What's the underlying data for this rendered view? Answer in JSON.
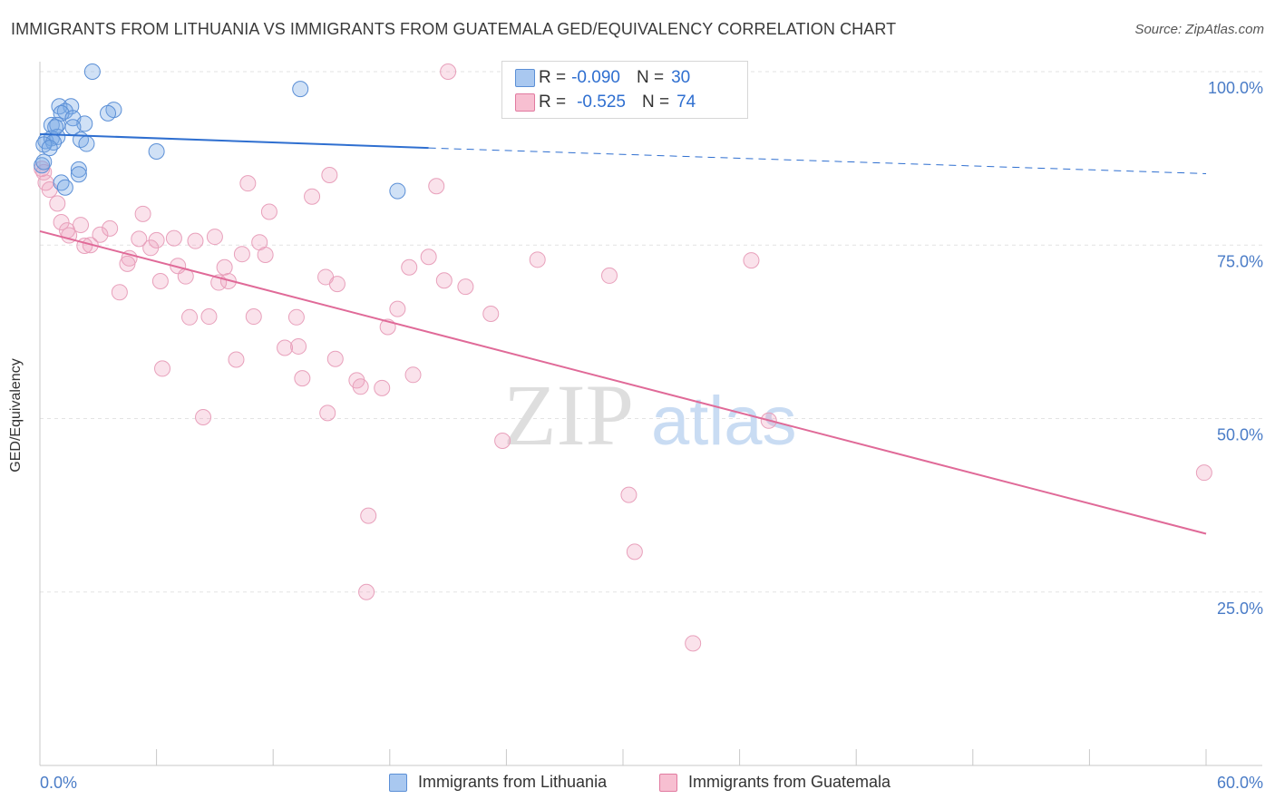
{
  "title": "IMMIGRANTS FROM LITHUANIA VS IMMIGRANTS FROM GUATEMALA GED/EQUIVALENCY CORRELATION CHART",
  "source": "Source: ZipAtlas.com",
  "ylabel": "GED/Equivalency",
  "watermark": {
    "part1": "ZIP",
    "part2": "atlas"
  },
  "legend_stats": [
    {
      "r_label": "R =",
      "r_value": "-0.090",
      "n_label": "N =",
      "n_value": "30",
      "color": "#a9c8f0",
      "border": "#5b8fd6"
    },
    {
      "r_label": "R =",
      "r_value": "-0.525",
      "n_label": "N =",
      "n_value": "74",
      "color": "#f7bfd1",
      "border": "#e17aa0"
    }
  ],
  "legend_bottom": [
    {
      "label": "Immigrants from Lithuania",
      "color": "#a9c8f0",
      "border": "#5b8fd6"
    },
    {
      "label": "Immigrants from Guatemala",
      "color": "#f7bfd1",
      "border": "#e17aa0"
    }
  ],
  "colors": {
    "lithuania_fill": "rgba(120,170,230,0.35)",
    "lithuania_stroke": "#5b8fd6",
    "lithuania_line": "#2f6fd0",
    "guatemala_fill": "rgba(240,160,190,0.30)",
    "guatemala_stroke": "#e8a0bb",
    "guatemala_line": "#e06a98",
    "grid": "#e3e3e3",
    "axis_text": "#4a7cc7"
  },
  "chart_data": {
    "type": "scatter",
    "xlabel": "",
    "ylabel": "GED/Equivalency",
    "xlim": [
      0,
      60
    ],
    "ylim": [
      0,
      102
    ],
    "x_tick_labels": [
      {
        "value": 0,
        "label": "0.0%"
      },
      {
        "value": 60,
        "label": "60.0%"
      }
    ],
    "y_tick_labels": [
      {
        "value": 100,
        "label": "100.0%"
      },
      {
        "value": 75,
        "label": "75.0%"
      },
      {
        "value": 50,
        "label": "50.0%"
      },
      {
        "value": 25,
        "label": "25.0%"
      }
    ],
    "x_minor_ticks": [
      0,
      6,
      12,
      18,
      24,
      30,
      36,
      42,
      48,
      54,
      60
    ],
    "y_gridlines": [
      100,
      75,
      50,
      25
    ],
    "legend_position": "top-center",
    "series": [
      {
        "name": "Immigrants from Lithuania",
        "points": [
          [
            2.7,
            100.0
          ],
          [
            13.4,
            97.5
          ],
          [
            1.0,
            95.0
          ],
          [
            1.6,
            95.0
          ],
          [
            3.8,
            94.5
          ],
          [
            1.3,
            94.3
          ],
          [
            3.5,
            94.0
          ],
          [
            1.1,
            94.0
          ],
          [
            1.7,
            93.3
          ],
          [
            0.6,
            92.3
          ],
          [
            0.9,
            92.3
          ],
          [
            2.3,
            92.5
          ],
          [
            1.7,
            92.0
          ],
          [
            0.3,
            90.0
          ],
          [
            0.6,
            90.4
          ],
          [
            0.9,
            90.6
          ],
          [
            2.1,
            90.2
          ],
          [
            2.4,
            89.6
          ],
          [
            0.7,
            89.8
          ],
          [
            0.2,
            89.5
          ],
          [
            6.0,
            88.5
          ],
          [
            0.1,
            86.5
          ],
          [
            2.0,
            85.9
          ],
          [
            2.0,
            85.2
          ],
          [
            1.1,
            84.0
          ],
          [
            1.3,
            83.3
          ],
          [
            18.4,
            82.8
          ],
          [
            0.2,
            87.0
          ],
          [
            0.5,
            89.0
          ],
          [
            0.8,
            92.0
          ]
        ],
        "trend": {
          "x": [
            0.0,
            20.0
          ],
          "y": [
            91.0,
            89.0
          ],
          "dashed_extension": {
            "x": [
              20.0,
              60.0
            ],
            "y": [
              89.0,
              85.3
            ]
          }
        }
      },
      {
        "name": "Immigrants from Guatemala",
        "points": [
          [
            21.0,
            100.0
          ],
          [
            14.9,
            85.1
          ],
          [
            10.7,
            83.9
          ],
          [
            14.0,
            82.0
          ],
          [
            20.4,
            83.5
          ],
          [
            0.9,
            81.0
          ],
          [
            5.3,
            79.5
          ],
          [
            11.8,
            79.8
          ],
          [
            1.1,
            78.3
          ],
          [
            2.1,
            77.9
          ],
          [
            3.6,
            77.4
          ],
          [
            1.4,
            77.1
          ],
          [
            1.5,
            76.4
          ],
          [
            3.1,
            76.5
          ],
          [
            5.1,
            75.9
          ],
          [
            9.0,
            76.2
          ],
          [
            6.0,
            75.7
          ],
          [
            6.9,
            76.0
          ],
          [
            8.0,
            75.6
          ],
          [
            11.3,
            75.4
          ],
          [
            2.6,
            75.0
          ],
          [
            2.3,
            74.9
          ],
          [
            5.7,
            74.6
          ],
          [
            10.4,
            73.7
          ],
          [
            11.6,
            73.6
          ],
          [
            4.6,
            73.1
          ],
          [
            20.0,
            73.3
          ],
          [
            25.6,
            72.9
          ],
          [
            36.6,
            72.8
          ],
          [
            4.5,
            72.3
          ],
          [
            7.1,
            72.0
          ],
          [
            19.0,
            71.8
          ],
          [
            9.5,
            71.8
          ],
          [
            7.5,
            70.5
          ],
          [
            14.7,
            70.4
          ],
          [
            29.3,
            70.6
          ],
          [
            6.2,
            69.8
          ],
          [
            9.2,
            69.6
          ],
          [
            9.7,
            69.8
          ],
          [
            15.3,
            69.4
          ],
          [
            20.8,
            69.9
          ],
          [
            21.9,
            69.0
          ],
          [
            4.1,
            68.2
          ],
          [
            18.4,
            65.8
          ],
          [
            23.2,
            65.1
          ],
          [
            7.7,
            64.6
          ],
          [
            8.7,
            64.7
          ],
          [
            11.0,
            64.7
          ],
          [
            13.2,
            64.6
          ],
          [
            17.9,
            63.2
          ],
          [
            12.6,
            60.2
          ],
          [
            13.3,
            60.4
          ],
          [
            15.2,
            58.6
          ],
          [
            10.1,
            58.5
          ],
          [
            6.3,
            57.2
          ],
          [
            19.2,
            56.3
          ],
          [
            13.5,
            55.8
          ],
          [
            16.3,
            55.5
          ],
          [
            16.5,
            54.6
          ],
          [
            17.6,
            54.4
          ],
          [
            14.8,
            50.8
          ],
          [
            8.4,
            50.2
          ],
          [
            37.5,
            49.7
          ],
          [
            23.8,
            46.8
          ],
          [
            59.9,
            42.2
          ],
          [
            30.3,
            39.0
          ],
          [
            16.9,
            36.0
          ],
          [
            30.6,
            30.8
          ],
          [
            16.8,
            25.0
          ],
          [
            33.6,
            17.6
          ],
          [
            0.1,
            86.0
          ],
          [
            0.3,
            84.0
          ],
          [
            0.5,
            83.0
          ],
          [
            0.2,
            85.5
          ]
        ],
        "trend": {
          "x": [
            0.0,
            60.0
          ],
          "y": [
            77.0,
            33.4
          ]
        }
      }
    ]
  }
}
